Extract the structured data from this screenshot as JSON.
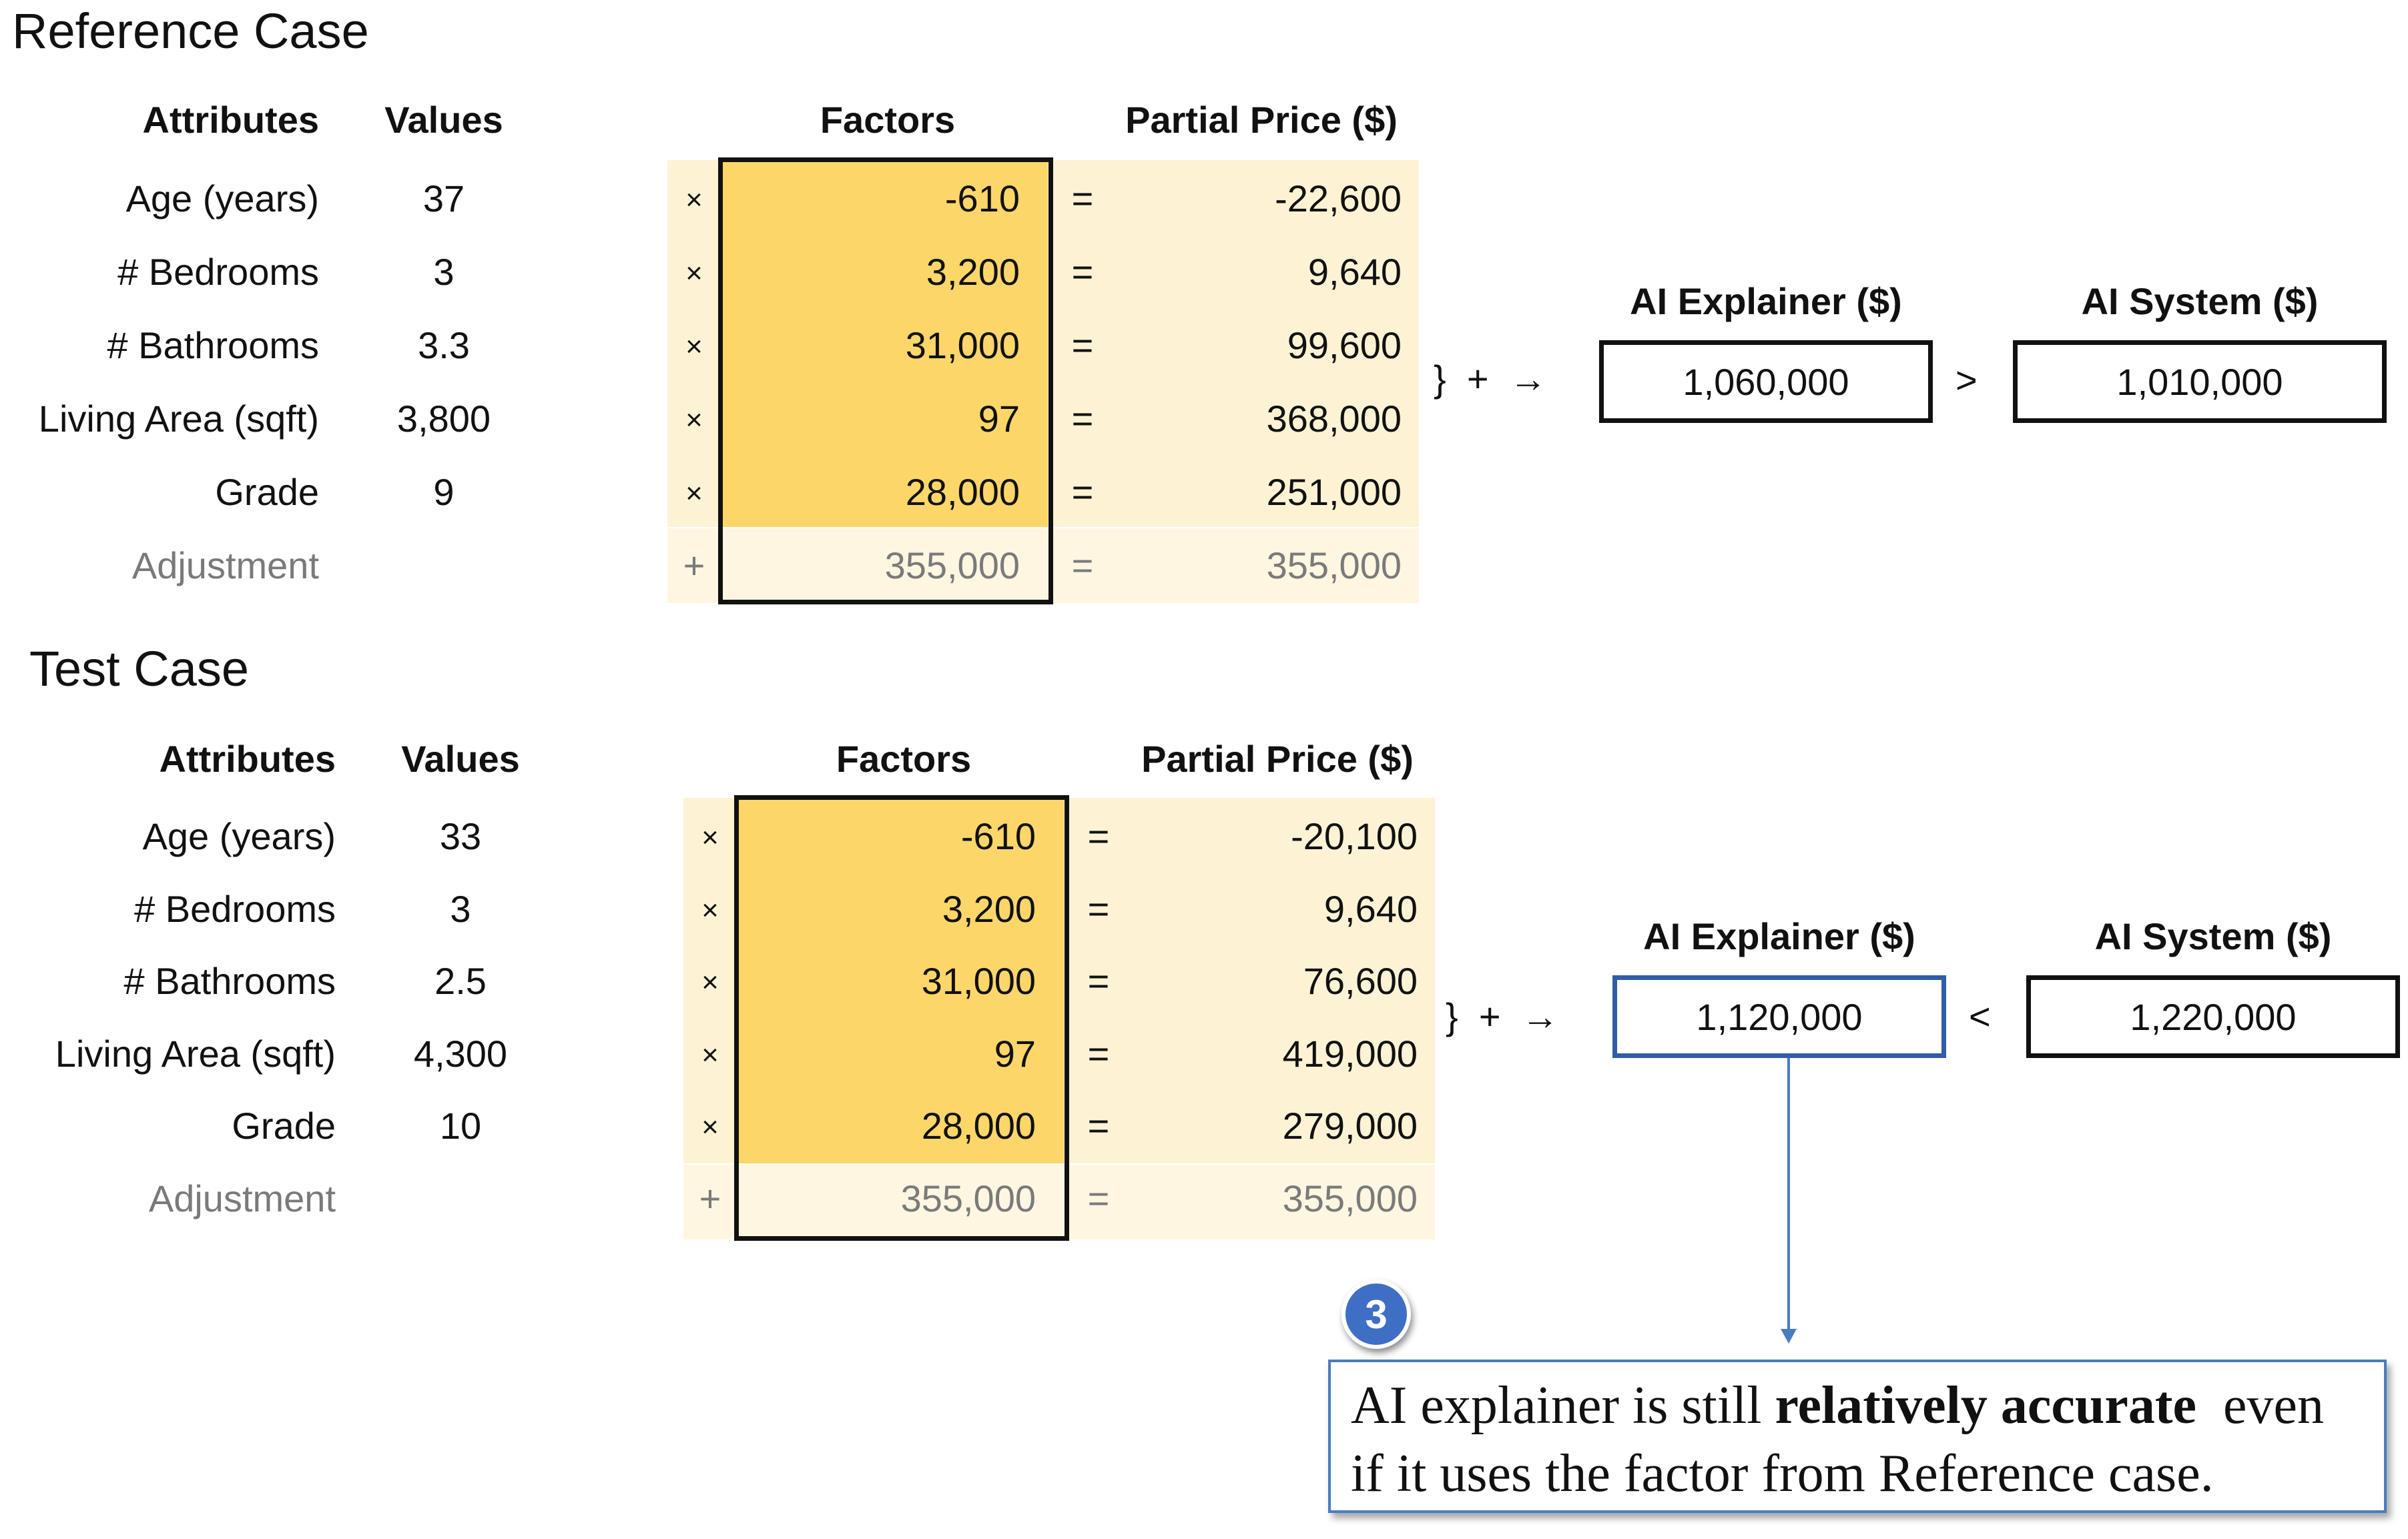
{
  "reference": {
    "title": "Reference Case",
    "headers": {
      "attributes": "Attributes",
      "values": "Values",
      "factors": "Factors",
      "partial_price": "Partial Price ($)"
    },
    "rows": [
      {
        "attribute": "Age (years)",
        "value": "37",
        "op": "×",
        "factor": "-610",
        "eq": "=",
        "partial": "-22,600"
      },
      {
        "attribute": "# Bedrooms",
        "value": "3",
        "op": "×",
        "factor": "3,200",
        "eq": "=",
        "partial": "9,640"
      },
      {
        "attribute": "# Bathrooms",
        "value": "3.3",
        "op": "×",
        "factor": "31,000",
        "eq": "=",
        "partial": "99,600"
      },
      {
        "attribute": "Living Area (sqft)",
        "value": "3,800",
        "op": "×",
        "factor": "97",
        "eq": "=",
        "partial": "368,000"
      },
      {
        "attribute": "Grade",
        "value": "9",
        "op": "×",
        "factor": "28,000",
        "eq": "=",
        "partial": "251,000"
      }
    ],
    "adjustment": {
      "attribute": "Adjustment",
      "op": "+",
      "factor": "355,000",
      "eq": "=",
      "partial": "355,000"
    },
    "sum_symbol": "}  +  →",
    "explainer_label": "AI Explainer ($)",
    "explainer_value": "1,060,000",
    "comparison": ">",
    "system_label": "AI System ($)",
    "system_value": "1,010,000"
  },
  "test": {
    "title": "Test Case",
    "headers": {
      "attributes": "Attributes",
      "values": "Values",
      "factors": "Factors",
      "partial_price": "Partial Price ($)"
    },
    "rows": [
      {
        "attribute": "Age (years)",
        "value": "33",
        "op": "×",
        "factor": "-610",
        "eq": "=",
        "partial": "-20,100"
      },
      {
        "attribute": "# Bedrooms",
        "value": "3",
        "op": "×",
        "factor": "3,200",
        "eq": "=",
        "partial": "9,640"
      },
      {
        "attribute": "# Bathrooms",
        "value": "2.5",
        "op": "×",
        "factor": "31,000",
        "eq": "=",
        "partial": "76,600"
      },
      {
        "attribute": "Living Area (sqft)",
        "value": "4,300",
        "op": "×",
        "factor": "97",
        "eq": "=",
        "partial": "419,000"
      },
      {
        "attribute": "Grade",
        "value": "10",
        "op": "×",
        "factor": "28,000",
        "eq": "=",
        "partial": "279,000"
      }
    ],
    "adjustment": {
      "attribute": "Adjustment",
      "op": "+",
      "factor": "355,000",
      "eq": "=",
      "partial": "355,000"
    },
    "sum_symbol": "}  +  →",
    "explainer_label": "AI Explainer ($)",
    "explainer_value": "1,120,000",
    "comparison": "<",
    "system_label": "AI System ($)",
    "system_value": "1,220,000"
  },
  "callout": {
    "badge": "3",
    "text_before": "AI explainer is still ",
    "text_bold": "relatively accurate",
    "text_after": "  even if it uses the factor from Reference case."
  },
  "colors": {
    "factor_fill": "#fdd66a",
    "partial_fill": "#fdf3d4",
    "highlight_border": "#2f5da8",
    "badge": "#3f6fc4"
  }
}
